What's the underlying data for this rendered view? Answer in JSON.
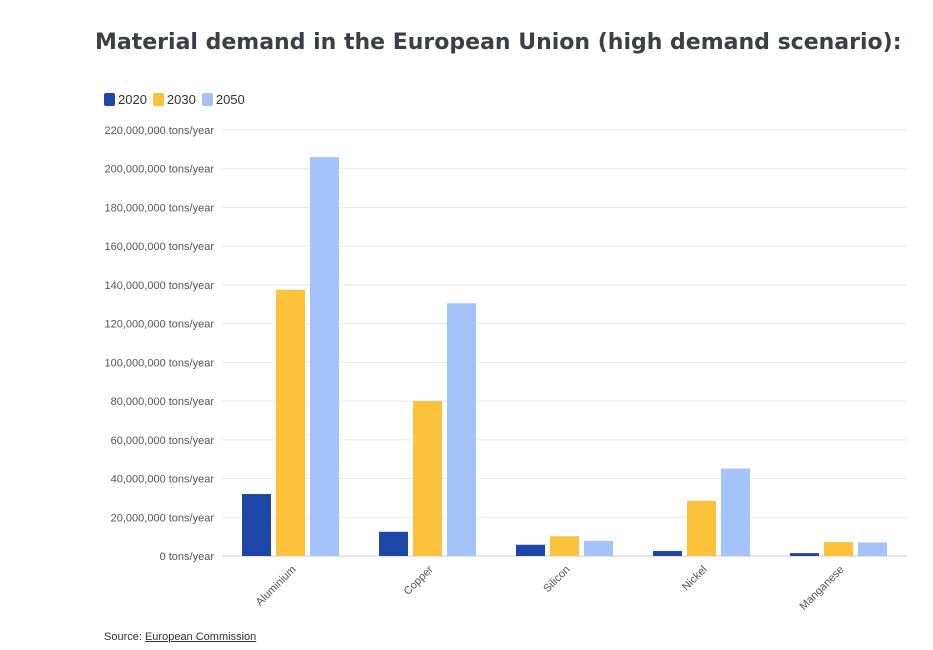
{
  "title": "Material demand in the European Union (high demand scenario):",
  "source": {
    "prefix": "Source: ",
    "link_text": "European Commission"
  },
  "colors": {
    "2020": "#1c47a7",
    "2030": "#fdc23c",
    "2050": "#a5c3fb",
    "grid": "#e8e8e8",
    "axis": "#cccccc"
  },
  "chart_data": {
    "type": "bar",
    "title": "Material demand in the European Union (high demand scenario):",
    "categories": [
      "Aluminium",
      "Copper",
      "Silicon",
      "Nickel",
      "Manganese"
    ],
    "series": [
      {
        "name": "2020",
        "values": [
          32000000,
          12500000,
          5800000,
          2600000,
          1500000
        ]
      },
      {
        "name": "2030",
        "values": [
          137500000,
          80000000,
          10200000,
          28500000,
          7200000
        ]
      },
      {
        "name": "2050",
        "values": [
          206000000,
          130500000,
          7800000,
          45200000,
          7000000
        ]
      }
    ],
    "ylim": [
      0,
      220000000
    ],
    "y_ticks": [
      0,
      20000000,
      40000000,
      60000000,
      80000000,
      100000000,
      120000000,
      140000000,
      160000000,
      180000000,
      200000000,
      220000000
    ],
    "y_tick_labels": [
      "0 tons/year",
      "20,000,000 tons/year",
      "40,000,000 tons/year",
      "60,000,000 tons/year",
      "80,000,000 tons/year",
      "100,000,000 tons/year",
      "120,000,000 tons/year",
      "140,000,000 tons/year",
      "160,000,000 tons/year",
      "180,000,000 tons/year",
      "200,000,000 tons/year",
      "220,000,000 tons/year"
    ],
    "grid": true,
    "legend_position": "top-left",
    "xlabel": "",
    "ylabel": ""
  }
}
